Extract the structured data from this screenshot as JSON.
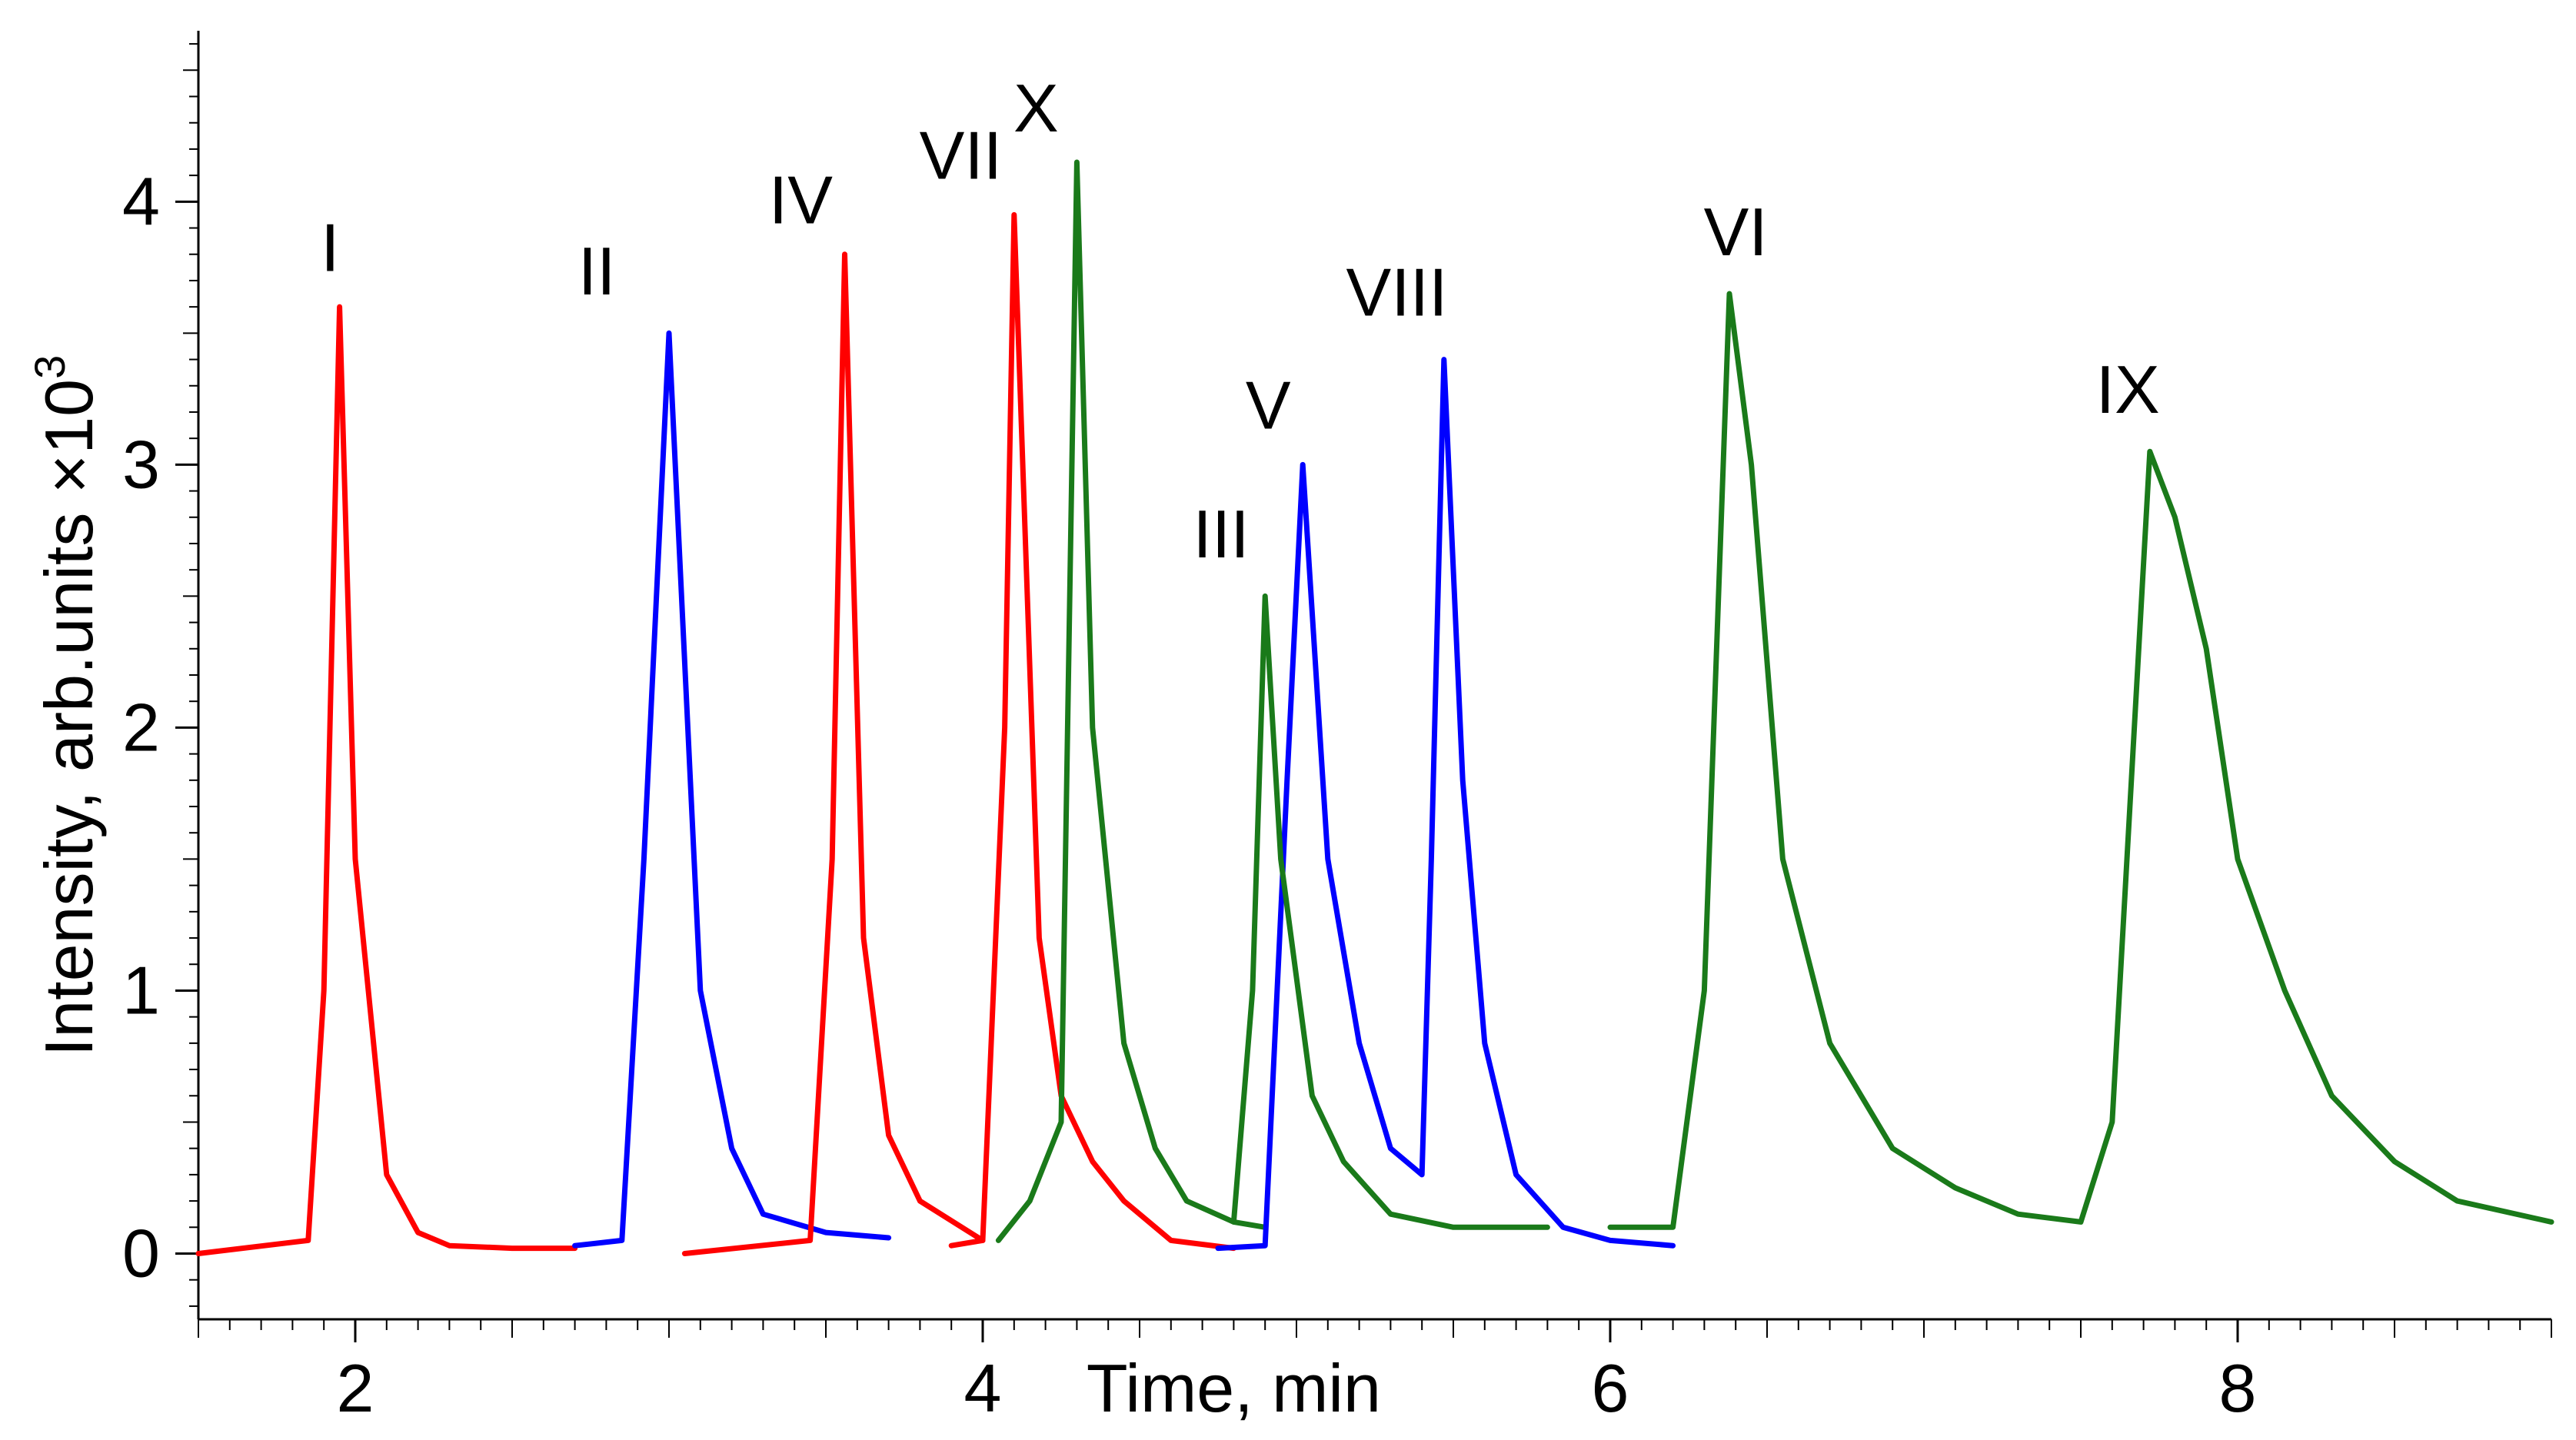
{
  "chart_data": {
    "type": "line",
    "title": "",
    "xlabel": "Time, min",
    "ylabel": "Intensity, arb.units ×10",
    "ylabel_exponent": "3",
    "xlim": [
      1.5,
      9.0
    ],
    "ylim": [
      -0.25,
      4.65
    ],
    "x_ticks": [
      2,
      4,
      6,
      8
    ],
    "x_tick_labels": [
      "2",
      "4",
      "6",
      "8"
    ],
    "y_ticks": [
      0,
      1,
      2,
      3,
      4
    ],
    "y_tick_labels": [
      "0",
      "1",
      "2",
      "3",
      "4"
    ],
    "colors": {
      "red": "#ff0000",
      "blue": "#0000ff",
      "green": "#1a7a1a"
    },
    "series": [
      {
        "name": "red-segment-1",
        "color": "red",
        "x": [
          1.5,
          1.85,
          1.9,
          1.95,
          2.0,
          2.1,
          2.2,
          2.3,
          2.5,
          2.7
        ],
        "y": [
          0.0,
          0.05,
          1.0,
          3.6,
          1.5,
          0.3,
          0.08,
          0.03,
          0.02,
          0.02
        ]
      },
      {
        "name": "blue-segment-1",
        "color": "blue",
        "x": [
          2.7,
          2.85,
          2.92,
          3.0,
          3.1,
          3.2,
          3.3,
          3.5,
          3.7
        ],
        "y": [
          0.03,
          0.05,
          1.5,
          3.5,
          1.0,
          0.4,
          0.15,
          0.08,
          0.06
        ]
      },
      {
        "name": "red-segment-2",
        "color": "red",
        "x": [
          3.05,
          3.45,
          3.52,
          3.56,
          3.62,
          3.7,
          3.8,
          4.0
        ],
        "y": [
          0.0,
          0.05,
          1.5,
          3.8,
          1.2,
          0.45,
          0.2,
          0.05
        ]
      },
      {
        "name": "red-segment-3",
        "color": "red",
        "x": [
          3.9,
          4.0,
          4.07,
          4.1,
          4.18,
          4.25,
          4.35,
          4.45,
          4.6,
          4.8
        ],
        "y": [
          0.03,
          0.05,
          2.0,
          3.95,
          1.2,
          0.6,
          0.35,
          0.2,
          0.05,
          0.02
        ]
      },
      {
        "name": "green-segment-1",
        "color": "green",
        "x": [
          4.05,
          4.15,
          4.25,
          4.3,
          4.35,
          4.45,
          4.55,
          4.65,
          4.8,
          4.9
        ],
        "y": [
          0.05,
          0.2,
          0.5,
          4.15,
          2.0,
          0.8,
          0.4,
          0.2,
          0.12,
          0.1
        ]
      },
      {
        "name": "blue-segment-2",
        "color": "blue",
        "x": [
          4.75,
          4.9,
          4.97,
          5.02,
          5.1,
          5.2,
          5.3,
          5.4,
          5.43,
          5.47,
          5.53,
          5.6,
          5.7,
          5.85,
          6.0,
          6.2
        ],
        "y": [
          0.02,
          0.03,
          1.8,
          3.0,
          1.5,
          0.8,
          0.4,
          0.3,
          1.5,
          3.4,
          1.8,
          0.8,
          0.3,
          0.1,
          0.05,
          0.03
        ]
      },
      {
        "name": "green-segment-2",
        "color": "green",
        "x": [
          4.8,
          4.86,
          4.9,
          4.95,
          5.05,
          5.15,
          5.3,
          5.5,
          5.8
        ],
        "y": [
          0.12,
          1.0,
          2.5,
          1.5,
          0.6,
          0.35,
          0.15,
          0.1,
          0.1
        ]
      },
      {
        "name": "green-segment-3",
        "color": "green",
        "x": [
          6.0,
          6.2,
          6.3,
          6.38,
          6.45,
          6.55,
          6.7,
          6.9,
          7.1,
          7.3,
          7.5,
          7.6,
          7.72,
          7.8,
          7.9,
          8.0,
          8.15,
          8.3,
          8.5,
          8.7,
          9.0
        ],
        "y": [
          0.1,
          0.1,
          1.0,
          3.65,
          3.0,
          1.5,
          0.8,
          0.4,
          0.25,
          0.15,
          0.12,
          0.5,
          3.05,
          2.8,
          2.3,
          1.5,
          1.0,
          0.6,
          0.35,
          0.2,
          0.12
        ]
      }
    ],
    "peaks": [
      {
        "label": "I",
        "x": 1.92,
        "y": 3.62
      },
      {
        "label": "II",
        "x": 2.77,
        "y": 3.53
      },
      {
        "label": "IV",
        "x": 3.42,
        "y": 3.8
      },
      {
        "label": "VII",
        "x": 3.93,
        "y": 3.97
      },
      {
        "label": "X",
        "x": 4.17,
        "y": 4.15
      },
      {
        "label": "III",
        "x": 4.76,
        "y": 2.53
      },
      {
        "label": "V",
        "x": 4.91,
        "y": 3.02
      },
      {
        "label": "VIII",
        "x": 5.32,
        "y": 3.45
      },
      {
        "label": "VI",
        "x": 6.4,
        "y": 3.68
      },
      {
        "label": "IX",
        "x": 7.65,
        "y": 3.08
      }
    ]
  }
}
